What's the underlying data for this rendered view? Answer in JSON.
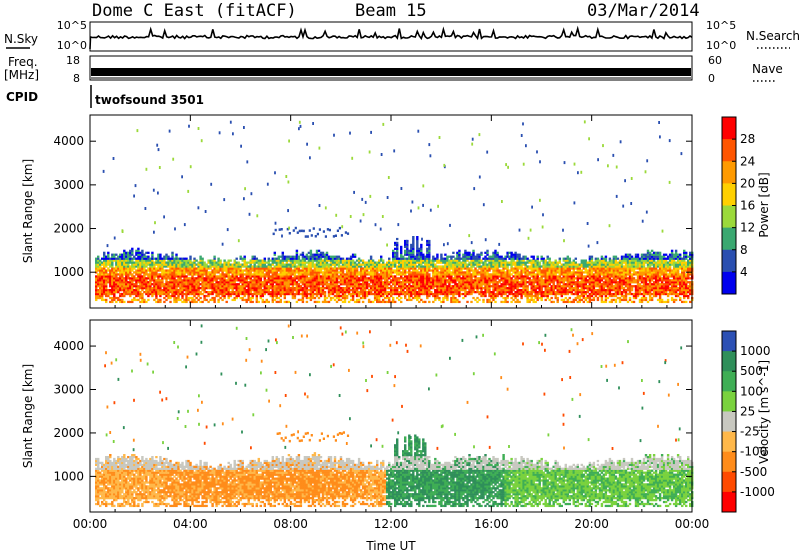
{
  "header": {
    "station": "Dome C East (fitACF)",
    "beam": "Beam 15",
    "date": "03/Mar/2014"
  },
  "top_panels": {
    "nsky_label": "N.Sky",
    "nsky_ticks": [
      "10^5",
      "10^0"
    ],
    "nsearch_label": "N.Search",
    "nsearch_ticks": [
      "10^5",
      "10^0"
    ],
    "freq_label": "Freq.",
    "freq_unit": "[MHz]",
    "freq_ticks": [
      "18",
      "8"
    ],
    "nave_label": "Nave",
    "nave_ticks": [
      "60",
      "0"
    ],
    "cpid_label": "CPID",
    "cpid_value": "twofsound 3501"
  },
  "chart_data": [
    {
      "type": "heatmap",
      "panel": "power",
      "xlabel": "",
      "ylabel": "Slant Range [km]",
      "x_range_hours": [
        0,
        24
      ],
      "ylim": [
        180,
        4600
      ],
      "y_ticks": [
        1000,
        2000,
        3000,
        4000
      ],
      "colorbar": {
        "label": "Power [dB]",
        "ticks": [
          "28",
          "24",
          "20",
          "16",
          "12",
          "8",
          "4"
        ],
        "colors": [
          "#ff0000",
          "#ff5500",
          "#ff9a00",
          "#ffd000",
          "#9bd93a",
          "#3aa870",
          "#2a4fb0",
          "#0000ee"
        ]
      },
      "features": [
        {
          "desc": "main scatter band",
          "x_start": 0.2,
          "x_end": 24,
          "range_min": 300,
          "range_max": 1450,
          "power_peak_db": 30
        },
        {
          "desc": "elevated layer",
          "x_start": 7.2,
          "x_end": 10.3,
          "range_min": 1750,
          "range_max": 2050,
          "power_db": 6
        },
        {
          "desc": "spread echoes",
          "x_start": 12.2,
          "x_end": 14.3,
          "range_min": 1500,
          "range_max": 2450,
          "power_db": 18
        }
      ]
    },
    {
      "type": "heatmap",
      "panel": "velocity",
      "xlabel": "Time UT",
      "ylabel": "Slant Range [km]",
      "x_range_hours": [
        0,
        24
      ],
      "x_ticks": [
        "00:00",
        "04:00",
        "08:00",
        "12:00",
        "16:00",
        "20:00",
        "00:00"
      ],
      "ylim": [
        180,
        4600
      ],
      "y_ticks": [
        1000,
        2000,
        3000,
        4000
      ],
      "colorbar": {
        "label": "Velocity [m s^-1]",
        "ticks": [
          "1000",
          "500",
          "100",
          "25",
          "-25",
          "-100",
          "-500",
          "-1000"
        ],
        "colors": [
          "#2c50b4",
          "#2f8f5a",
          "#3fae55",
          "#7ad23e",
          "#c8c8c0",
          "#ffb84a",
          "#ff8c1a",
          "#ff4a00",
          "#ff0000"
        ]
      },
      "features": [
        {
          "desc": "negative velocities (orange)",
          "x_start": 0.2,
          "x_end": 11.8,
          "range_min": 300,
          "range_max": 1400,
          "velocity": -100
        },
        {
          "desc": "positive velocities (green)",
          "x_start": 11.8,
          "x_end": 24,
          "range_min": 300,
          "range_max": 1700,
          "velocity": 100
        },
        {
          "desc": "near-zero velocity band (grey)",
          "x_start": 0.2,
          "x_end": 24,
          "range_min": 1150,
          "range_max": 1450,
          "velocity": 0
        }
      ]
    }
  ],
  "colors": {
    "frame": "#000000",
    "background": "#ffffff"
  }
}
